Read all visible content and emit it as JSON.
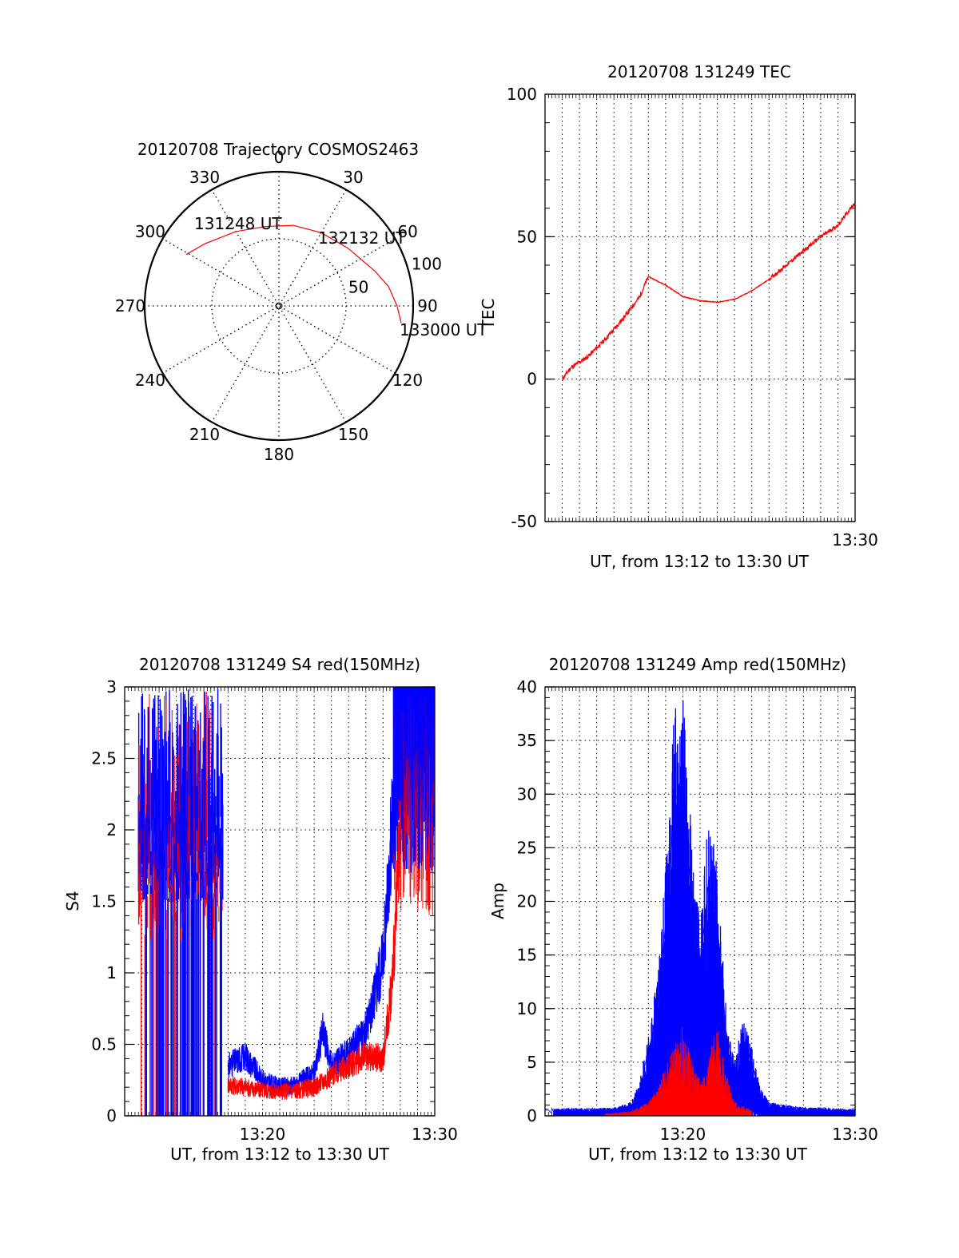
{
  "chart_data": [
    {
      "type": "polar",
      "title": "20120708 Trajectory COSMOS2463",
      "angle_ticks": [
        "0",
        "30",
        "60",
        "90",
        "120",
        "150",
        "180",
        "210",
        "240",
        "270",
        "300",
        "330"
      ],
      "radial_ticks": [
        "50",
        "100"
      ],
      "rmax": 100,
      "track": {
        "points": [
          [
            299,
            79
          ],
          [
            310,
            72
          ],
          [
            330,
            64
          ],
          [
            350,
            60
          ],
          [
            10,
            61
          ],
          [
            30,
            63
          ],
          [
            50,
            67
          ],
          [
            70,
            76
          ],
          [
            80,
            83
          ],
          [
            90,
            88
          ],
          [
            98,
            92
          ]
        ],
        "labels": [
          "131248 UT",
          "132132 UT",
          "133000 UT"
        ]
      },
      "colors": {
        "track": "#ff0000"
      }
    },
    {
      "type": "line",
      "title": "20120708 131249 TEC",
      "xlabel": "UT, from 13:12 to 13:30 UT",
      "ylabel": "TEC",
      "xlim": [
        0,
        18
      ],
      "ylim": [
        -50,
        100
      ],
      "yticks": [
        "-50",
        "0",
        "50",
        "100"
      ],
      "xtick_labels": [
        {
          "x": 18,
          "label": "13:30"
        }
      ],
      "grid": true,
      "series": [
        {
          "color": "#ff0000",
          "x": [
            1.0,
            1.5,
            2.5,
            3.5,
            4.5,
            5.5,
            6.0,
            7.0,
            8.0,
            9.0,
            10.0,
            11.0,
            12.0,
            13.0,
            14.0,
            15.0,
            16.0,
            17.0,
            18.0
          ],
          "y": [
            0,
            4,
            8,
            14,
            21,
            29,
            36,
            33,
            29,
            27.5,
            27,
            28,
            31,
            35,
            40,
            45,
            50,
            54,
            62
          ]
        }
      ]
    },
    {
      "type": "line",
      "title": "20120708 131249 S4 red(150MHz)",
      "xlabel": "UT, from 13:12 to 13:30 UT",
      "ylabel": "S4",
      "xlim": [
        0,
        18
      ],
      "ylim": [
        0,
        3
      ],
      "yticks": [
        "0",
        "0.5",
        "1",
        "1.5",
        "2",
        "2.5",
        "3"
      ],
      "xtick_labels": [
        {
          "x": 8,
          "label": "13:20"
        },
        {
          "x": 18,
          "label": "13:30"
        }
      ],
      "grid": true,
      "series": [
        {
          "color": "#0000ff",
          "x": [
            6.0,
            7.0,
            8.0,
            9.0,
            10.0,
            11.0,
            11.5,
            12.0,
            13.0,
            14.0,
            15.0,
            15.5,
            16.0
          ],
          "y": [
            0.35,
            0.42,
            0.25,
            0.2,
            0.22,
            0.3,
            0.6,
            0.35,
            0.45,
            0.6,
            1.1,
            2.0,
            2.6
          ]
        },
        {
          "color": "#ff0000",
          "x": [
            6.0,
            7.0,
            8.0,
            9.0,
            10.0,
            11.0,
            12.0,
            13.0,
            14.0,
            15.0,
            15.5,
            16.0
          ],
          "y": [
            0.22,
            0.2,
            0.18,
            0.17,
            0.18,
            0.2,
            0.28,
            0.35,
            0.42,
            0.4,
            0.9,
            1.9
          ]
        }
      ]
    },
    {
      "type": "line",
      "title": "20120708 131249 Amp red(150MHz)",
      "xlabel": "UT, from 13:12 to 13:30 UT",
      "ylabel": "Amp",
      "xlim": [
        0,
        18
      ],
      "ylim": [
        0,
        40
      ],
      "yticks": [
        "0",
        "5",
        "10",
        "15",
        "20",
        "25",
        "30",
        "35",
        "40"
      ],
      "xtick_labels": [
        {
          "x": 8,
          "label": "13:20"
        },
        {
          "x": 18,
          "label": "13:30"
        }
      ],
      "grid": true,
      "series": [
        {
          "color": "#0000ff",
          "x": [
            0,
            4,
            5,
            5.5,
            6.0,
            6.5,
            7.0,
            7.5,
            8.0,
            8.5,
            9.0,
            9.5,
            10.0,
            10.5,
            11.0,
            11.5,
            12.0,
            12.5,
            13.0,
            14.0,
            15.0,
            16.0,
            17.0,
            18.0
          ],
          "y": [
            0.5,
            0.6,
            1.0,
            2.5,
            6.0,
            10.0,
            18.0,
            29.0,
            32.0,
            20.0,
            14.0,
            22.0,
            18.0,
            8.0,
            4.0,
            7.0,
            5.0,
            2.0,
            1.0,
            0.8,
            0.6,
            0.6,
            0.5,
            0.5
          ]
        },
        {
          "color": "#ff0000",
          "x": [
            0,
            4,
            5,
            6,
            6.5,
            7.0,
            7.5,
            8.0,
            8.5,
            9.0,
            9.5,
            10.0,
            10.5,
            11.0,
            12.0,
            14.0,
            18.0
          ],
          "y": [
            0.1,
            0.2,
            0.4,
            1.0,
            2.0,
            3.5,
            5.0,
            6.5,
            4.0,
            2.5,
            4.0,
            7.0,
            3.0,
            1.0,
            0.4,
            0.2,
            0.1
          ]
        }
      ]
    }
  ]
}
